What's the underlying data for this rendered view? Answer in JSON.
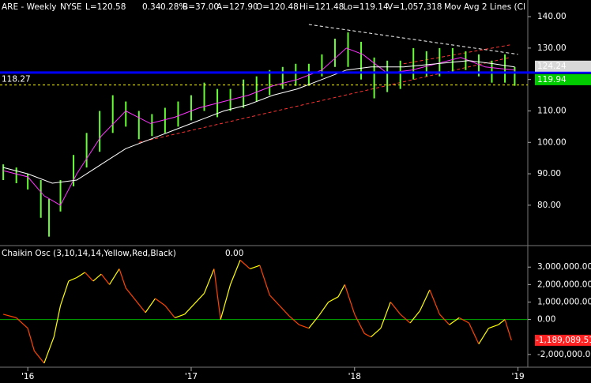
{
  "chart_data": [
    {
      "type": "range_bar",
      "header_items": [
        "ARE - Weekly",
        "NYSE",
        "L=120.58",
        "0.34",
        "0.28%",
        "B=37.00",
        "A=127.90",
        "O=120.48",
        "Hi=121.48",
        "Lo=119.14",
        "V=1,057,318",
        "Mov Avg 2 Lines (Cl"
      ],
      "xlim": [
        2015.83,
        2019.06
      ],
      "ylim": [
        67.4,
        145.3
      ],
      "yticks": [
        {
          "value": 80,
          "label": "80.00"
        },
        {
          "value": 90,
          "label": "90.00"
        },
        {
          "value": 100,
          "label": "100.00"
        },
        {
          "value": 110,
          "label": "110.00"
        },
        {
          "value": 120,
          "label": "120.00"
        },
        {
          "value": 130,
          "label": "130.00"
        },
        {
          "value": 140,
          "label": "140.00"
        }
      ],
      "bars": {
        "color": "#66ff33",
        "x": [
          2015.85,
          2015.93,
          2016.0,
          2016.08,
          2016.13,
          2016.2,
          2016.28,
          2016.36,
          2016.44,
          2016.52,
          2016.6,
          2016.68,
          2016.76,
          2016.84,
          2016.92,
          2017.0,
          2017.08,
          2017.16,
          2017.24,
          2017.32,
          2017.4,
          2017.48,
          2017.56,
          2017.64,
          2017.72,
          2017.8,
          2017.88,
          2017.96,
          2018.04,
          2018.12,
          2018.2,
          2018.28,
          2018.36,
          2018.44,
          2018.52,
          2018.6,
          2018.68,
          2018.76,
          2018.84,
          2018.92,
          2018.98
        ],
        "high": [
          93,
          92,
          90,
          88,
          82,
          88,
          96,
          103,
          110,
          115,
          113,
          110,
          109,
          111,
          113,
          115,
          119,
          117,
          117,
          120,
          121,
          123,
          124,
          125,
          125,
          128,
          133,
          135,
          132,
          127,
          126,
          126,
          130,
          129,
          130,
          130,
          129,
          128,
          126,
          128,
          124
        ],
        "low": [
          88,
          87,
          85,
          76,
          70,
          78,
          86,
          92,
          97,
          103,
          105,
          101,
          102,
          103,
          105,
          107,
          110,
          108,
          110,
          111,
          113,
          115,
          117,
          118,
          118,
          121,
          124,
          124,
          120,
          114,
          116,
          117,
          120,
          121,
          121,
          122,
          123,
          121,
          119,
          119,
          118
        ]
      },
      "moving_averages": [
        {
          "color": "#ff33ff",
          "x": [
            2015.85,
            2016.0,
            2016.1,
            2016.2,
            2016.3,
            2016.45,
            2016.6,
            2016.75,
            2016.9,
            2017.05,
            2017.2,
            2017.35,
            2017.5,
            2017.65,
            2017.8,
            2017.95,
            2018.05,
            2018.2,
            2018.35,
            2018.5,
            2018.65,
            2018.8,
            2018.98
          ],
          "values": [
            91,
            89,
            83,
            80,
            90,
            102,
            110,
            106,
            108,
            111,
            113,
            115,
            118,
            120,
            123,
            130,
            128,
            122,
            123,
            125,
            127,
            124,
            123
          ]
        },
        {
          "color": "#ffffff",
          "x": [
            2015.85,
            2016.0,
            2016.15,
            2016.3,
            2016.45,
            2016.6,
            2016.75,
            2016.9,
            2017.05,
            2017.2,
            2017.35,
            2017.5,
            2017.65,
            2017.8,
            2017.95,
            2018.1,
            2018.3,
            2018.5,
            2018.7,
            2018.85,
            2018.98
          ],
          "values": [
            92,
            90,
            87,
            88,
            93,
            98,
            101,
            104,
            107,
            110,
            112,
            115,
            117,
            120,
            123,
            124,
            124,
            125,
            126,
            125,
            124
          ]
        }
      ],
      "trendlines": [
        {
          "color": "#ffffff",
          "x": [
            2017.72,
            2019.0
          ],
          "y": [
            137.5,
            128
          ]
        },
        {
          "color": "#ff3333",
          "x": [
            2016.68,
            2018.95
          ],
          "y": [
            100,
            127
          ]
        },
        {
          "color": "#ff3333",
          "x": [
            2018.3,
            2018.95
          ],
          "y": [
            125,
            131
          ]
        }
      ],
      "reference_lines": [
        {
          "value": 118.27,
          "color": "#ffff00",
          "dashed": true,
          "labeled": true
        },
        {
          "value": 122.2,
          "color": "#0000ff",
          "dashed": false,
          "labeled": false
        }
      ],
      "price_boxes": [
        {
          "value": 124.24,
          "color": "#d8d8d8",
          "text_color": "#000000"
        },
        {
          "value": 119.94,
          "color": "#00cc00",
          "text_color": "#000000"
        }
      ]
    },
    {
      "type": "oscillator",
      "title": "Chaikin Osc (3,10,14,14,Yellow,Red,Black)",
      "readouts": [
        {
          "value": -1189089.51,
          "color": "#ff3333"
        },
        {
          "value": 0,
          "label": "0.00",
          "color": "#00cc00"
        }
      ],
      "rising_color": "#ffff00",
      "falling_color": "#ff4400",
      "zero_color": "#00aa00",
      "xlim": [
        2015.83,
        2019.06
      ],
      "ylim": [
        -2730000,
        4140000
      ],
      "yticks": [
        {
          "value": -2000000,
          "label": "-2,000,000.00"
        },
        {
          "value": 0,
          "label": "0.00"
        },
        {
          "value": 1000000,
          "label": "1,000,000.00"
        },
        {
          "value": 2000000,
          "label": "2,000,000.00"
        },
        {
          "value": 3000000,
          "label": "3,000,000.00"
        }
      ],
      "xticks": [
        {
          "value": 2016,
          "label": "'16"
        },
        {
          "value": 2017,
          "label": "'17"
        },
        {
          "value": 2018,
          "label": "'18"
        },
        {
          "value": 2019,
          "label": "'19"
        }
      ],
      "x": [
        2015.85,
        2015.93,
        2016.0,
        2016.04,
        2016.1,
        2016.16,
        2016.2,
        2016.25,
        2016.3,
        2016.35,
        2016.4,
        2016.45,
        2016.5,
        2016.56,
        2016.6,
        2016.66,
        2016.72,
        2016.78,
        2016.84,
        2016.9,
        2016.96,
        2017.02,
        2017.08,
        2017.14,
        2017.18,
        2017.24,
        2017.3,
        2017.36,
        2017.42,
        2017.48,
        2017.54,
        2017.6,
        2017.66,
        2017.72,
        2017.78,
        2017.84,
        2017.9,
        2017.94,
        2018.0,
        2018.06,
        2018.1,
        2018.16,
        2018.22,
        2018.28,
        2018.34,
        2018.4,
        2018.46,
        2018.52,
        2018.58,
        2018.64,
        2018.7,
        2018.76,
        2018.82,
        2018.88,
        2018.92,
        2018.96
      ],
      "values": [
        300000,
        100000,
        -500000,
        -1800000,
        -2500000,
        -1000000,
        800000,
        2200000,
        2400000,
        2700000,
        2200000,
        2600000,
        2000000,
        2900000,
        1800000,
        1100000,
        400000,
        1200000,
        800000,
        100000,
        300000,
        900000,
        1500000,
        2900000,
        0,
        2000000,
        3400000,
        2900000,
        3100000,
        1400000,
        800000,
        200000,
        -300000,
        -500000,
        200000,
        1000000,
        1300000,
        2000000,
        300000,
        -800000,
        -1000000,
        -500000,
        1000000,
        300000,
        -200000,
        500000,
        1700000,
        300000,
        -300000,
        100000,
        -200000,
        -1400000,
        -500000,
        -300000,
        0,
        -1189089.51
      ],
      "last_label": {
        "value": -1189089.51,
        "label": "-1,189,089.51",
        "color": "#ff2222"
      }
    }
  ]
}
